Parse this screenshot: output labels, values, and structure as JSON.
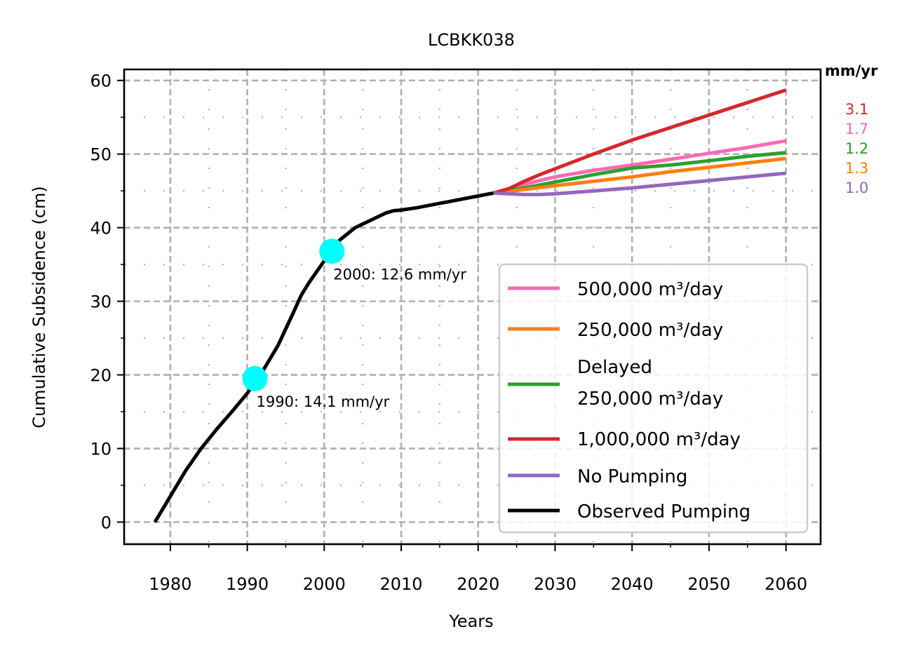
{
  "chart_data": {
    "type": "line",
    "title": "LCBKK038",
    "xlabel": "Years",
    "ylabel": "Cumulative Subsidence (cm)",
    "xlim": [
      1974,
      2064.5
    ],
    "ylim": [
      -3,
      61.5
    ],
    "x_ticks": [
      1980,
      1990,
      2000,
      2010,
      2020,
      2030,
      2040,
      2050,
      2060
    ],
    "y_ticks": [
      0,
      10,
      20,
      30,
      40,
      50,
      60
    ],
    "grid": true,
    "legend_position": "lower-right",
    "rates_header": "mm/yr",
    "series": [
      {
        "name": "Observed Pumping",
        "color": "#000000",
        "x": [
          1978,
          1980,
          1982,
          1984,
          1986,
          1988,
          1990,
          1992,
          1994,
          1996,
          1997,
          1998,
          2000,
          2002,
          2004,
          2006,
          2008,
          2009,
          2010,
          2012,
          2014,
          2016,
          2018,
          2020,
          2022
        ],
        "y": [
          0,
          3.5,
          7,
          10,
          12.6,
          15,
          17.5,
          20.5,
          24,
          28.5,
          30.8,
          32.5,
          35.5,
          38.3,
          40,
          41,
          42,
          42.3,
          42.4,
          42.7,
          43.1,
          43.5,
          43.9,
          44.3,
          44.7
        ]
      },
      {
        "name": "500,000 m³/day",
        "color": "#ff69b4",
        "rate": "1.7",
        "x": [
          2022,
          2024,
          2026,
          2030,
          2035,
          2040,
          2045,
          2050,
          2055,
          2060
        ],
        "y": [
          44.7,
          45.2,
          45.9,
          46.9,
          47.8,
          48.5,
          49.3,
          50.1,
          50.9,
          51.8
        ]
      },
      {
        "name": "250,000 m³/day",
        "color": "#ff7f0e",
        "rate": "1.3",
        "x": [
          2022,
          2024,
          2026,
          2030,
          2035,
          2040,
          2045,
          2050,
          2055,
          2060
        ],
        "y": [
          44.7,
          44.9,
          45.2,
          45.7,
          46.3,
          46.9,
          47.6,
          48.2,
          48.8,
          49.4
        ]
      },
      {
        "name": "Delayed 250,000 m³/day",
        "color": "#2ca02c",
        "rate": "1.2",
        "x": [
          2022,
          2024,
          2026,
          2030,
          2035,
          2040,
          2045,
          2050,
          2055,
          2060
        ],
        "y": [
          44.7,
          45.0,
          45.4,
          46.2,
          47.2,
          48.1,
          48.5,
          49.1,
          49.7,
          50.2
        ]
      },
      {
        "name": "1,000,000 m³/day",
        "color": "#d62728",
        "rate": "3.1",
        "x": [
          2022,
          2024,
          2026,
          2028,
          2030,
          2035,
          2040,
          2045,
          2050,
          2055,
          2060
        ],
        "y": [
          44.7,
          45.3,
          46.3,
          47.2,
          48.0,
          50.0,
          51.9,
          53.6,
          55.3,
          57.0,
          58.7
        ]
      },
      {
        "name": "No Pumping",
        "color": "#9467bd",
        "rate": "1.0",
        "x": [
          2022,
          2024,
          2026,
          2028,
          2030,
          2035,
          2040,
          2045,
          2050,
          2055,
          2060
        ],
        "y": [
          44.7,
          44.6,
          44.5,
          44.5,
          44.6,
          45.0,
          45.4,
          45.9,
          46.4,
          46.9,
          47.4
        ]
      }
    ],
    "legend_order": [
      1,
      2,
      3,
      4,
      5,
      0
    ],
    "markers": [
      {
        "x": 1991,
        "y": 19.5,
        "label": "1990: 14.1 mm/yr",
        "color": "#00ffff"
      },
      {
        "x": 2001,
        "y": 36.8,
        "label": "2000: 12.6 mm/yr",
        "color": "#00ffff"
      }
    ]
  }
}
